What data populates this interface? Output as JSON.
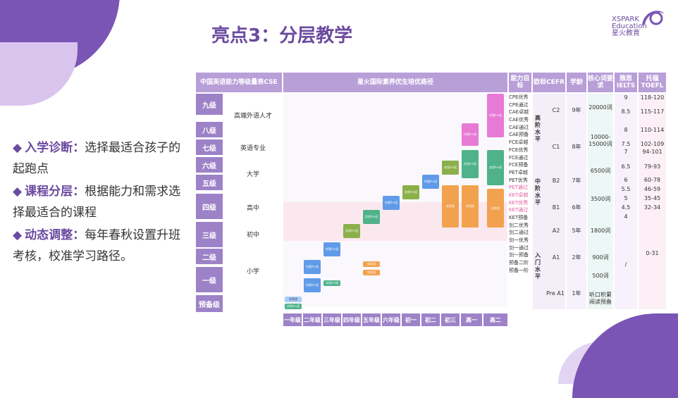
{
  "title": "亮点3：分层教学",
  "logo": {
    "line1": "XSPARK",
    "line2": "Education",
    "line3": "星火教育"
  },
  "bullets": [
    {
      "head": "入学诊断：",
      "text": "选择最适合孩子的起跑点"
    },
    {
      "head": "课程分层：",
      "text": "根据能力和需求选择最适合的课程"
    },
    {
      "head": "动态调整：",
      "text": "每年春秋设置升班考核，校准学习路径。"
    }
  ],
  "table": {
    "headers": {
      "cse": "中国英语能力等级量表CSE",
      "path": "星火国际素养优生培优路径",
      "ability": "能力目标",
      "cefr": "欧标CEFR",
      "age": "学龄",
      "vocab": "核心词要求",
      "ielts": "雅思IELTS",
      "toefl": "托福TOEFL"
    },
    "levels": [
      "九级",
      "八级",
      "七级",
      "六级",
      "五级",
      "四级",
      "三级",
      "二级",
      "一级",
      "预备级"
    ],
    "level_desc": [
      "高端外语人才",
      "英语专业",
      "大学",
      "高中",
      "初中",
      "小学"
    ],
    "grades": [
      "一年级",
      "二年级",
      "三年级",
      "四年级",
      "五年级",
      "六年级",
      "初一",
      "初二",
      "初三",
      "高一",
      "高二"
    ],
    "conditions": [
      "CPE优秀",
      "CPE通过",
      "CAE卓越",
      "CAE优秀",
      "CAE通过",
      "CAE预备",
      "FCE卓越",
      "FCE优秀",
      "FCE通过",
      "FCE预备",
      "PET卓越",
      "PET优秀",
      "PET通过",
      "KET卓越",
      "KET优秀",
      "KET通过",
      "KET预备",
      "剑二优秀",
      "剑二通过",
      "剑一优秀",
      "剑一通过",
      "剑一预备",
      "预备二阶",
      "预备一阶"
    ],
    "stages": [
      "高阶水平",
      "中阶水平",
      "入门水平"
    ],
    "cefr": [
      "C2",
      "C1",
      "B2",
      "B1",
      "A2",
      "A1",
      "Pre A1"
    ],
    "age": [
      "9年",
      "8年",
      "7年",
      "6年",
      "5年",
      "2年",
      "1年"
    ],
    "vocab": [
      "20000词",
      "10000-15000词",
      "6500词",
      "3500词",
      "1800词",
      "900词",
      "500词",
      "听口积累阅读预备"
    ],
    "ielts": [
      "9",
      "8.5",
      "8",
      "7.5",
      "7",
      "6.5",
      "6",
      "5.5",
      "5",
      "4.5",
      "4",
      "/"
    ],
    "toefl": [
      "118-120",
      "115-117",
      "110-114",
      "102-109",
      "94-101",
      "79-93",
      "60-78",
      "46-59",
      "35-45",
      "32-34",
      "0-31"
    ],
    "block_labels": {
      "a": "托管A+班",
      "b": "实验A+班",
      "c": "实验班",
      "d": "托管A+班"
    }
  }
}
